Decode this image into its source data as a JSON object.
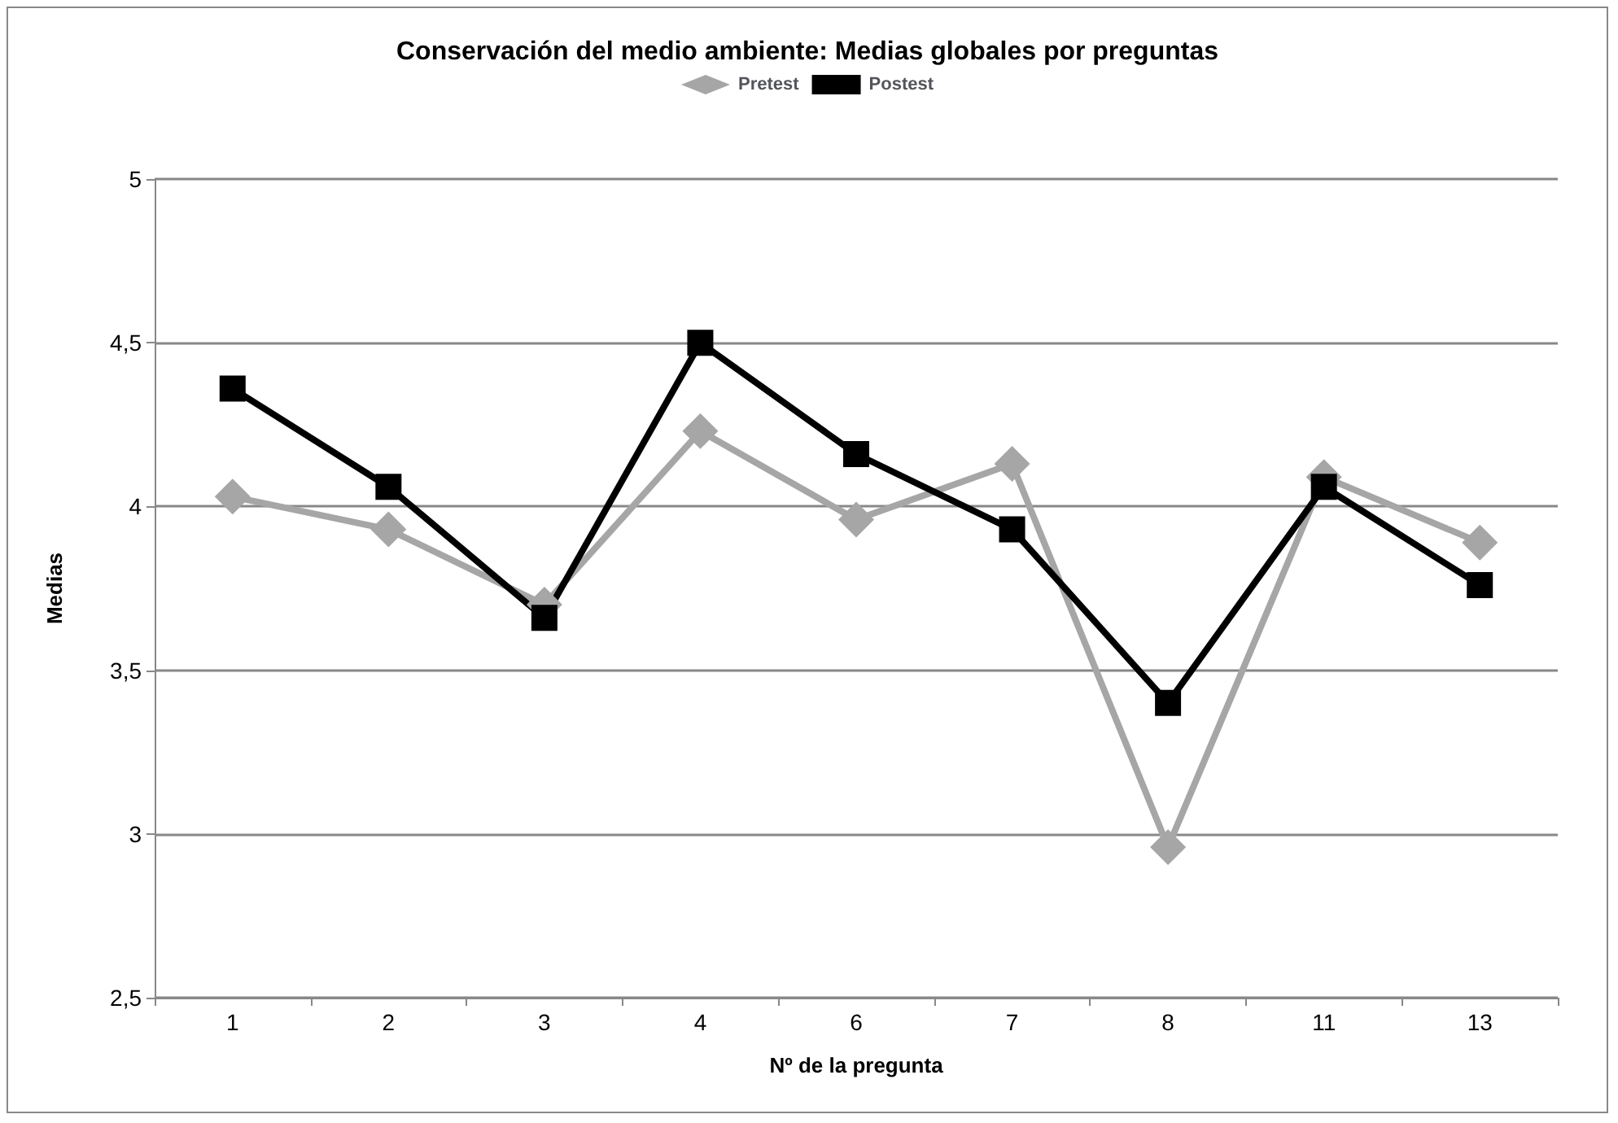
{
  "chart_data": {
    "type": "line",
    "title": "Conservación del medio ambiente: Medias globales por preguntas",
    "xlabel": "Nº de la pregunta",
    "ylabel": "Medias",
    "categories": [
      "1",
      "2",
      "3",
      "4",
      "6",
      "7",
      "8",
      "11",
      "13"
    ],
    "series": [
      {
        "name": "Pretest",
        "color": "#a6a6a6",
        "marker": "diamond",
        "values": [
          4.03,
          3.93,
          3.7,
          4.23,
          3.96,
          4.13,
          2.96,
          4.09,
          3.89
        ]
      },
      {
        "name": "Postest",
        "color": "#000000",
        "marker": "square",
        "values": [
          4.36,
          4.06,
          3.66,
          4.5,
          4.16,
          3.93,
          3.4,
          4.06,
          3.76
        ]
      }
    ],
    "ylim": [
      2.5,
      5
    ],
    "yticks": [
      {
        "value": 2.5,
        "label": "2,5"
      },
      {
        "value": 3,
        "label": "3"
      },
      {
        "value": 3.5,
        "label": "3,5"
      },
      {
        "value": 4,
        "label": "4"
      },
      {
        "value": 4.5,
        "label": "4,5"
      },
      {
        "value": 5,
        "label": "5"
      }
    ],
    "grid": "y",
    "legend": "top",
    "line_style": "solid"
  }
}
